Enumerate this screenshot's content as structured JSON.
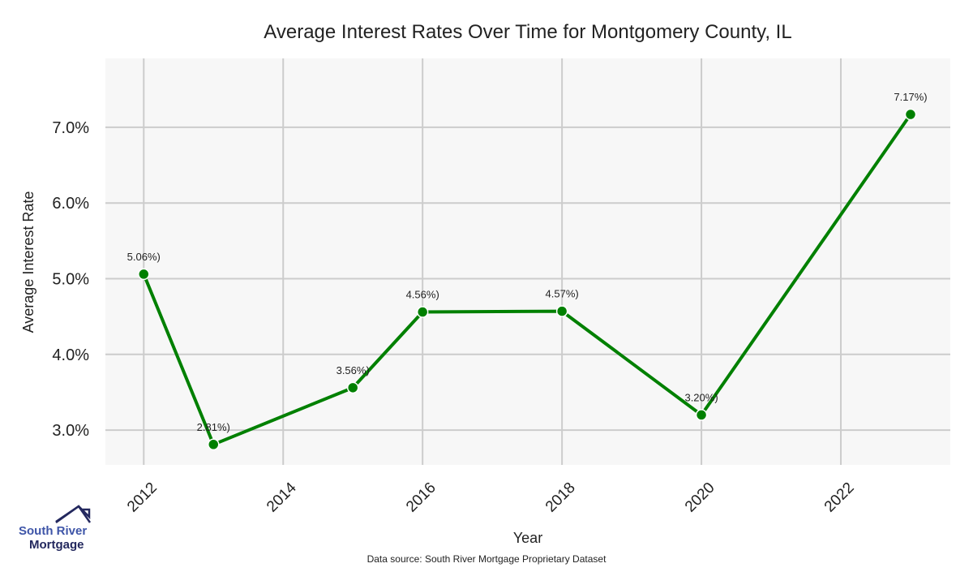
{
  "chart_data": {
    "type": "line",
    "title": "Average Interest Rates Over Time for Montgomery County, IL",
    "xlabel": "Year",
    "ylabel": "Average Interest Rate",
    "x": [
      2012,
      2013,
      2015,
      2016,
      2018,
      2020,
      2023
    ],
    "series": [
      {
        "name": "Average Interest Rate",
        "values": [
          5.06,
          2.81,
          3.56,
          4.56,
          4.57,
          3.2,
          7.17
        ],
        "color": "#008000"
      }
    ],
    "data_labels": [
      "5.06%)",
      "2.81%)",
      "3.56%)",
      "4.56%)",
      "4.57%)",
      "3.20%)",
      "7.17%)"
    ],
    "xticks": [
      2012,
      2014,
      2016,
      2018,
      2020,
      2022
    ],
    "xtick_labels": [
      "2012",
      "2014",
      "2016",
      "2018",
      "2020",
      "2022"
    ],
    "yticks": [
      3,
      4,
      5,
      6,
      7
    ],
    "ytick_labels": [
      "3.0%",
      "4.0%",
      "5.0%",
      "6.0%",
      "7.0%"
    ],
    "xlim": [
      2011.45,
      2023.57
    ],
    "ylim": [
      2.54,
      7.91
    ],
    "grid": true,
    "legend": "none"
  },
  "source_note": "Data source: South River Mortgage Proprietary Dataset",
  "logo": {
    "line1": "South River",
    "line2": "Mortgage"
  },
  "colors": {
    "plot_bg": "#f7f7f7",
    "grid": "#cccccc",
    "line": "#008000",
    "logo_light": "#3e55a8",
    "logo_dark": "#23285e"
  }
}
